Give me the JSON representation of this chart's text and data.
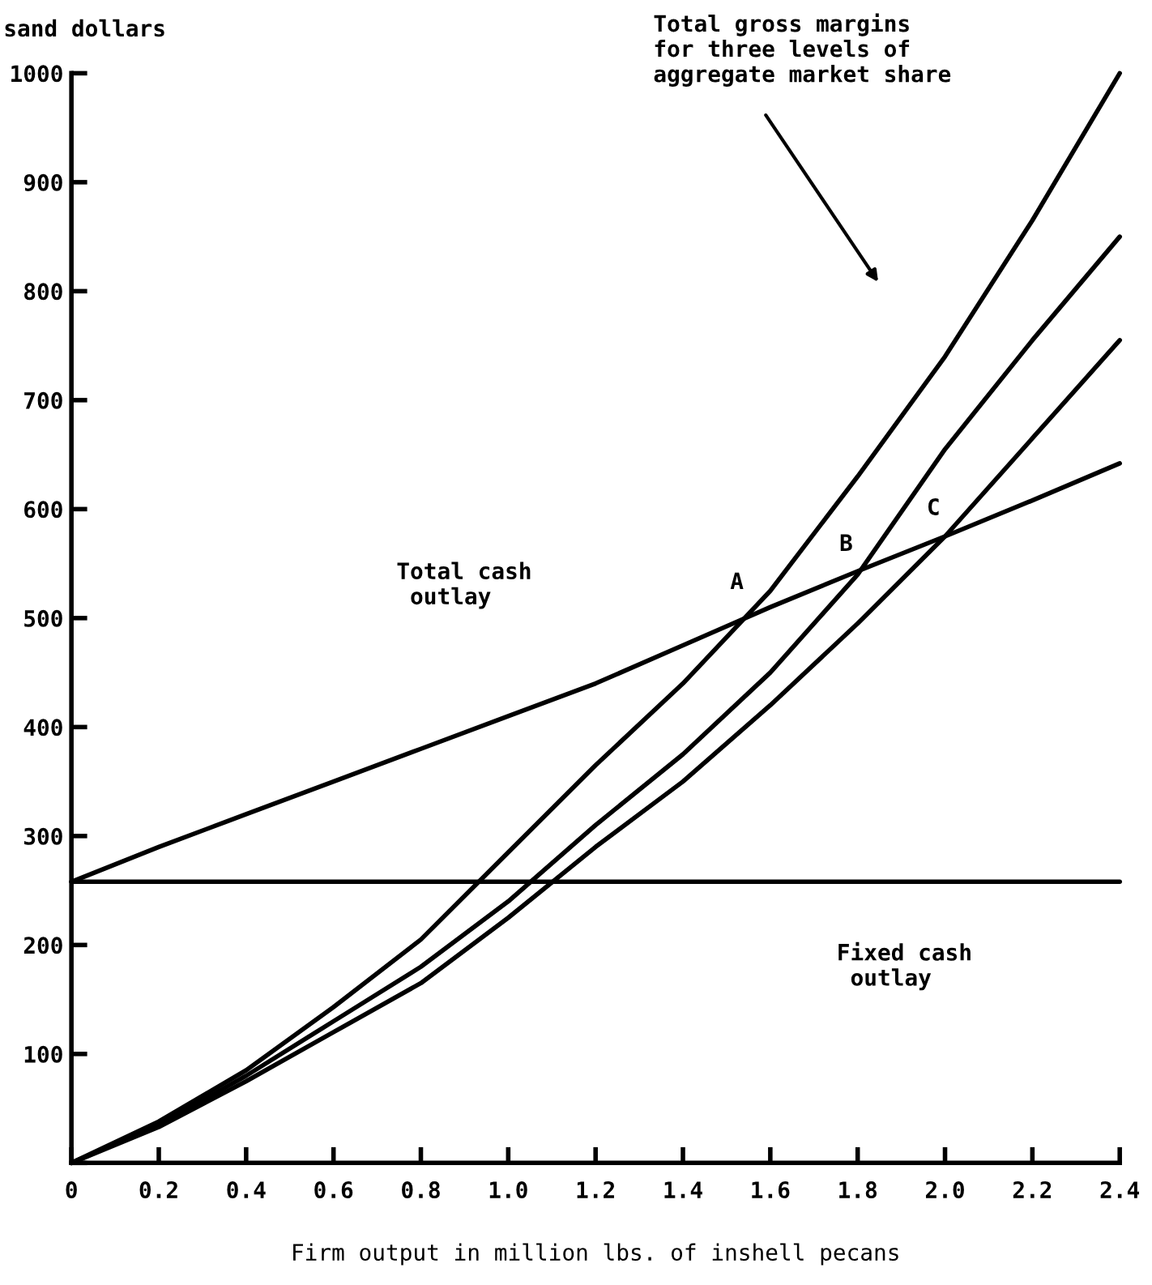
{
  "chart_data": {
    "type": "line",
    "xlabel": "Firm output in million lbs. of inshell pecans",
    "ylabel": "sand dollars",
    "x": [
      0,
      0.2,
      0.4,
      0.6,
      0.8,
      1.0,
      1.2,
      1.4,
      1.6,
      1.8,
      2.0,
      2.2,
      2.4
    ],
    "series": [
      {
        "color": "#000000",
        "values": [
          258,
          290,
          320,
          350,
          380,
          410,
          440,
          475,
          510,
          543,
          575,
          608,
          642
        ]
      },
      {
        "color": "#000000",
        "values": [
          258,
          258,
          258,
          258,
          258,
          258,
          258,
          258,
          258,
          258,
          258,
          258,
          258
        ]
      },
      {
        "color": "#000000",
        "values": [
          0,
          38,
          85,
          143,
          205,
          285,
          365,
          440,
          525,
          630,
          740,
          865,
          1000
        ]
      },
      {
        "color": "#000000",
        "values": [
          0,
          35,
          80,
          130,
          180,
          240,
          310,
          375,
          450,
          540,
          655,
          755,
          850
        ]
      },
      {
        "color": "#000000",
        "values": [
          0,
          33,
          75,
          120,
          165,
          225,
          290,
          350,
          420,
          495,
          575,
          665,
          755
        ]
      }
    ],
    "annotations": [
      "Total gross margins\nfor three levels of\naggregate market share",
      "Total cash\n outlay",
      "Fixed cash\n outlay",
      {
        "text": "A",
        "x": 1.57,
        "y": 510
      },
      {
        "text": "B",
        "x": 1.82,
        "y": 545
      },
      {
        "text": "C",
        "x": 2.02,
        "y": 578
      }
    ],
    "xlim": [
      0,
      2.4
    ],
    "ylim": [
      0,
      1000
    ],
    "xticks": [
      0,
      0.2,
      0.4,
      0.6,
      0.8,
      {
        "value": 1.0,
        "label": "1.0"
      },
      1.2,
      1.4,
      1.6,
      1.8,
      {
        "value": 2.0,
        "label": "2.0"
      },
      2.2,
      2.4
    ],
    "yticks": [
      {
        "value": 0,
        "label": null
      },
      100,
      200,
      300,
      400,
      500,
      600,
      700,
      800,
      900,
      1000
    ],
    "grid": false,
    "legend": false,
    "marker": "none",
    "line_style": "solid"
  }
}
